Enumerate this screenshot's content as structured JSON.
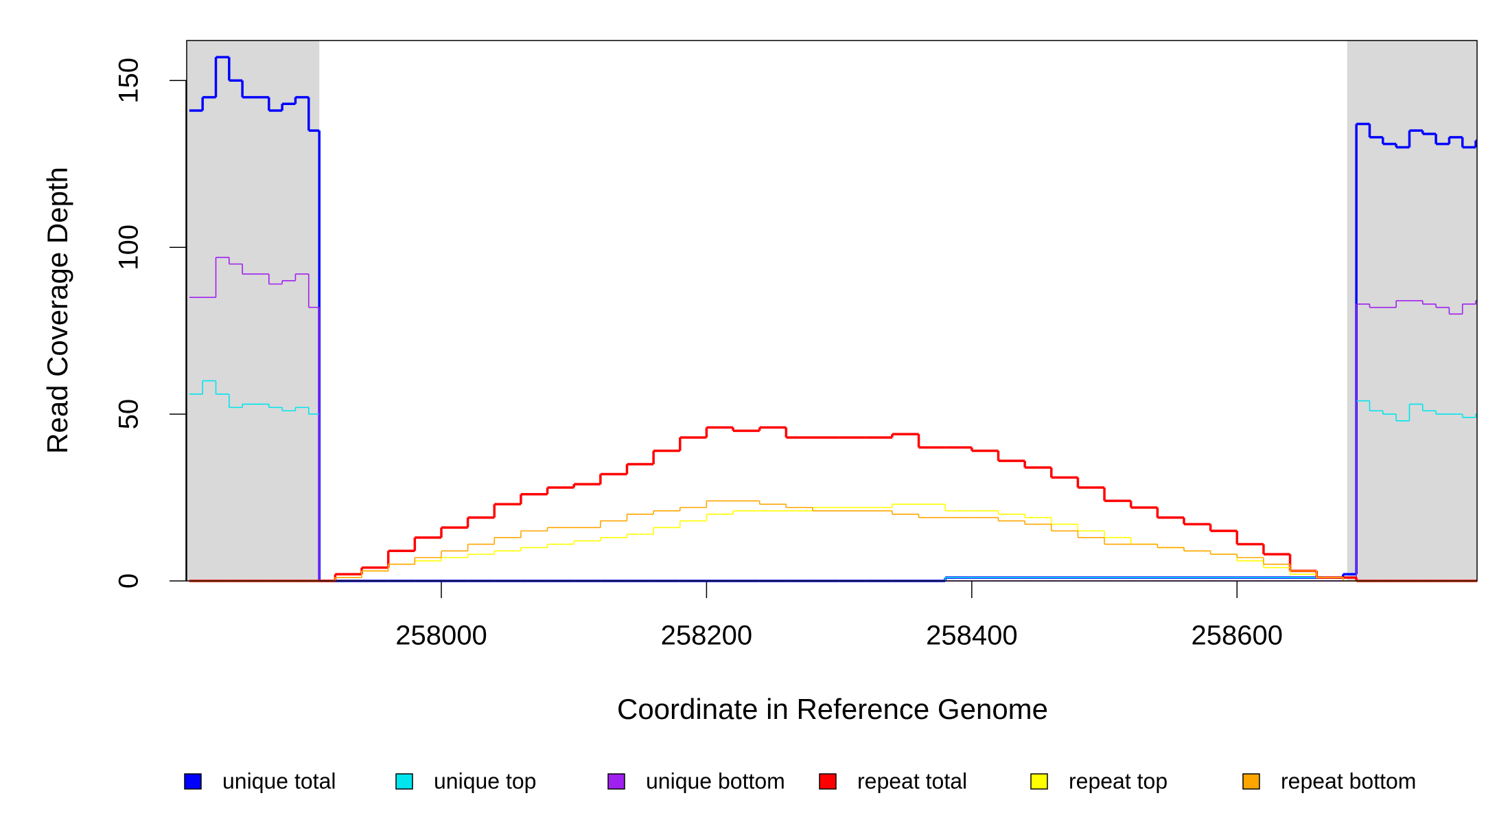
{
  "chart_data": {
    "type": "step",
    "x_label": "Coordinate in Reference Genome",
    "y_label": "Read Coverage Depth",
    "x": [
      257810,
      257820,
      257830,
      257840,
      257850,
      257860,
      257870,
      257880,
      257890,
      257900,
      257908,
      257920,
      257940,
      257960,
      257980,
      258000,
      258020,
      258040,
      258060,
      258080,
      258100,
      258120,
      258140,
      258160,
      258180,
      258200,
      258220,
      258240,
      258260,
      258280,
      258300,
      258320,
      258340,
      258360,
      258380,
      258400,
      258420,
      258440,
      258460,
      258480,
      258500,
      258520,
      258540,
      258560,
      258580,
      258600,
      258620,
      258640,
      258660,
      258680,
      258690,
      258700,
      258710,
      258720,
      258730,
      258740,
      258750,
      258760,
      258770,
      258780
    ],
    "xlim": [
      257808,
      258781
    ],
    "xticks": [
      258000,
      258200,
      258400,
      258600
    ],
    "ylim": [
      0,
      162
    ],
    "yticks": [
      0,
      50,
      100,
      150
    ],
    "highlight_regions": [
      [
        257808,
        257908
      ],
      [
        258683,
        258781
      ]
    ],
    "highlight_color": "#d9d9d9",
    "legend_position": "bottom",
    "series": [
      {
        "name": "unique total",
        "color": "#0000ff",
        "values": [
          141,
          145,
          157,
          150,
          145,
          145,
          141,
          143,
          145,
          135,
          0,
          0,
          0,
          0,
          0,
          0,
          0,
          0,
          0,
          0,
          0,
          0,
          0,
          0,
          0,
          0,
          0,
          0,
          0,
          0,
          0,
          0,
          0,
          0,
          1,
          1,
          1,
          1,
          1,
          1,
          1,
          1,
          1,
          1,
          1,
          1,
          1,
          1,
          1,
          2,
          137,
          133,
          131,
          130,
          135,
          134,
          131,
          133,
          130,
          132
        ]
      },
      {
        "name": "unique top",
        "color": "#00e5ee",
        "values": [
          56,
          60,
          56,
          52,
          53,
          53,
          52,
          51,
          52,
          50,
          0,
          0,
          0,
          0,
          0,
          0,
          0,
          0,
          0,
          0,
          0,
          0,
          0,
          0,
          0,
          0,
          0,
          0,
          0,
          0,
          0,
          0,
          0,
          0,
          1,
          1,
          1,
          1,
          1,
          1,
          1,
          1,
          1,
          1,
          1,
          1,
          1,
          1,
          1,
          1,
          54,
          51,
          50,
          48,
          53,
          51,
          50,
          50,
          49,
          50
        ]
      },
      {
        "name": "unique bottom",
        "color": "#a020f0",
        "values": [
          85,
          85,
          97,
          95,
          92,
          92,
          89,
          90,
          92,
          82,
          0,
          0,
          0,
          0,
          0,
          0,
          0,
          0,
          0,
          0,
          0,
          0,
          0,
          0,
          0,
          0,
          0,
          0,
          0,
          0,
          0,
          0,
          0,
          0,
          0,
          0,
          0,
          0,
          0,
          0,
          0,
          0,
          0,
          0,
          0,
          0,
          0,
          0,
          0,
          0,
          83,
          82,
          82,
          84,
          84,
          83,
          82,
          80,
          83,
          84
        ]
      },
      {
        "name": "repeat total",
        "color": "#ff0000",
        "values": [
          0,
          0,
          0,
          0,
          0,
          0,
          0,
          0,
          0,
          0,
          0,
          2,
          4,
          9,
          13,
          16,
          19,
          23,
          26,
          28,
          29,
          32,
          35,
          39,
          43,
          46,
          45,
          46,
          43,
          43,
          43,
          43,
          44,
          40,
          40,
          39,
          36,
          34,
          31,
          28,
          24,
          22,
          19,
          17,
          15,
          11,
          8,
          3,
          1,
          1,
          0,
          0,
          0,
          0,
          0,
          0,
          0,
          0,
          0,
          0
        ]
      },
      {
        "name": "repeat top",
        "color": "#ffff00",
        "values": [
          0,
          0,
          0,
          0,
          0,
          0,
          0,
          0,
          0,
          0,
          0,
          1,
          3,
          5,
          6,
          7,
          8,
          9,
          10,
          11,
          12,
          13,
          14,
          16,
          18,
          20,
          21,
          21,
          21,
          22,
          22,
          22,
          23,
          23,
          21,
          21,
          20,
          19,
          17,
          15,
          13,
          11,
          10,
          9,
          8,
          6,
          4,
          2,
          1,
          0,
          0,
          0,
          0,
          0,
          0,
          0,
          0,
          0,
          0,
          0
        ]
      },
      {
        "name": "repeat bottom",
        "color": "#ffa500",
        "values": [
          0,
          0,
          0,
          0,
          0,
          0,
          0,
          0,
          0,
          0,
          0,
          1,
          3,
          5,
          7,
          9,
          11,
          13,
          15,
          16,
          16,
          18,
          20,
          21,
          22,
          24,
          24,
          23,
          22,
          21,
          21,
          21,
          20,
          19,
          19,
          19,
          18,
          17,
          15,
          13,
          11,
          11,
          10,
          9,
          8,
          7,
          5,
          3,
          1,
          0,
          0,
          0,
          0,
          0,
          0,
          0,
          0,
          0,
          0,
          0
        ]
      }
    ]
  }
}
